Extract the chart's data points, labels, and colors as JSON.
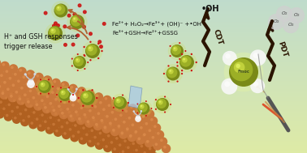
{
  "bg_top": "#cce0cc",
  "bg_bottom": "#e8f0d0",
  "mof_color1": "#c8773a",
  "mof_color2": "#b06020",
  "mof_highlight": "#e09050",
  "sphere_dark": "#7a8a18",
  "sphere_mid": "#a0b428",
  "sphere_light": "#c8d840",
  "sphere_bright": "#e0f060",
  "red_dot": "#cc1111",
  "arrow_brown": "#b06030",
  "crack_color": "#2a1400",
  "o2_color": "#d0d0d0",
  "o2_edge": "#909090",
  "white_body": "#f8f8f8",
  "white_shadow": "#d8d8e8",
  "text_label1": "H⁺ and GSH responses\ntrigger release",
  "text_label2": "Fe³⁺+GSH→Fe²⁺+GSSG",
  "text_label3": "Fe²⁺+ H₂O₂→Fe³⁺+ (OH)⁻ +•OH",
  "text_label4": "•OH",
  "text_cdt": "CDT",
  "text_pdt": "PDT"
}
